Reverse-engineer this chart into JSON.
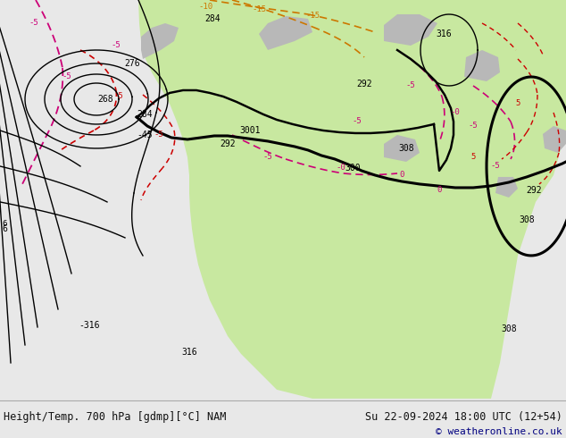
{
  "title_left": "Height/Temp. 700 hPa [gdmp][°C] NAM",
  "title_right": "Su 22-09-2024 18:00 UTC (12+54)",
  "copyright": "© weatheronline.co.uk",
  "ocean_color": "#d0d0d0",
  "land_green": "#c8e8a0",
  "land_gray": "#b0b0b0",
  "bottom_bg": "#e8e8e8",
  "figsize": [
    6.34,
    4.9
  ],
  "dpi": 100
}
